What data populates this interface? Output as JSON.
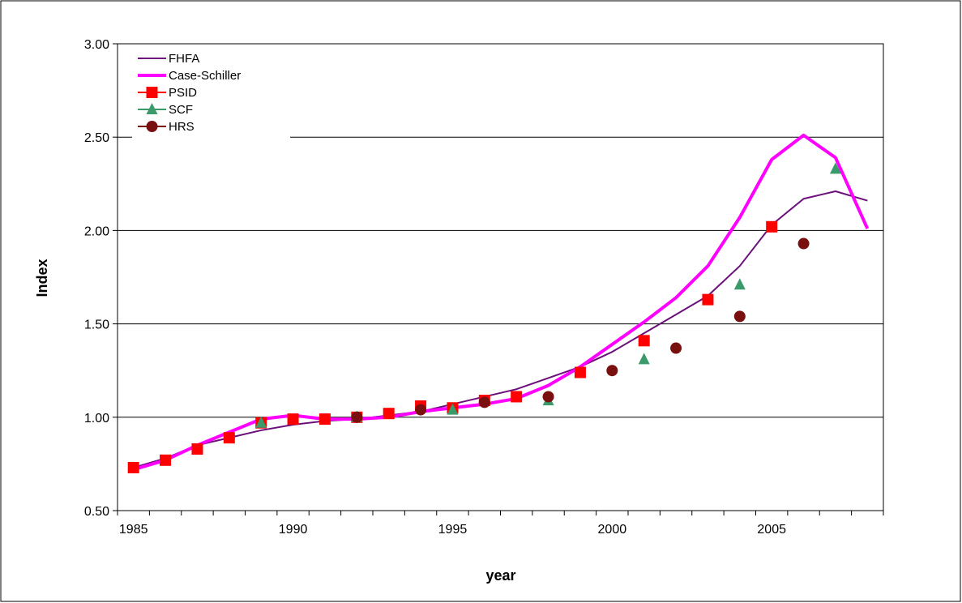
{
  "chart_data": {
    "type": "line",
    "title": "",
    "xlabel": "year",
    "ylabel": "Index",
    "xlim": [
      1985,
      2008
    ],
    "ylim": [
      0.5,
      3.0
    ],
    "x_ticks": [
      "1985",
      "1990",
      "1995",
      "2000",
      "2005"
    ],
    "y_ticks": [
      "0.50",
      "1.00",
      "1.50",
      "2.00",
      "2.50",
      "3.00"
    ],
    "grid": "horizontal",
    "legend_position": "top-left",
    "colors": {
      "FHFA": "#6B0F7A",
      "Case-Schiller": "#FF00FF",
      "PSID": "#FF0000",
      "SCF": "#3A9A6A",
      "HRS": "#7A0F0F"
    },
    "series": [
      {
        "name": "FHFA",
        "style": "line",
        "x": [
          1985,
          1986,
          1987,
          1988,
          1989,
          1990,
          1991,
          1992,
          1993,
          1994,
          1995,
          1996,
          1997,
          1998,
          1999,
          2000,
          2001,
          2002,
          2003,
          2004,
          2005,
          2006,
          2007,
          2008
        ],
        "values": [
          0.73,
          0.78,
          0.85,
          0.89,
          0.93,
          0.96,
          0.98,
          0.99,
          1.01,
          1.03,
          1.07,
          1.11,
          1.15,
          1.21,
          1.27,
          1.35,
          1.45,
          1.55,
          1.65,
          1.81,
          2.03,
          2.17,
          2.21,
          2.16
        ]
      },
      {
        "name": "Case-Schiller",
        "style": "line",
        "x": [
          1985,
          1986,
          1987,
          1988,
          1989,
          1990,
          1991,
          1992,
          1993,
          1994,
          1995,
          1996,
          1997,
          1998,
          1999,
          2000,
          2001,
          2002,
          2003,
          2004,
          2005,
          2006,
          2007,
          2008
        ],
        "values": [
          0.72,
          0.77,
          0.85,
          0.92,
          0.99,
          1.01,
          0.99,
          0.99,
          1.0,
          1.03,
          1.05,
          1.07,
          1.1,
          1.17,
          1.27,
          1.39,
          1.51,
          1.64,
          1.81,
          2.07,
          2.38,
          2.51,
          2.39,
          2.01
        ]
      },
      {
        "name": "PSID",
        "style": "square",
        "x": [
          1985,
          1986,
          1987,
          1988,
          1989,
          1990,
          1991,
          1992,
          1993,
          1994,
          1995,
          1996,
          1997,
          1999,
          2001,
          2003,
          2005
        ],
        "values": [
          0.73,
          0.77,
          0.83,
          0.89,
          0.97,
          0.99,
          0.99,
          1.0,
          1.02,
          1.06,
          1.05,
          1.09,
          1.11,
          1.24,
          1.41,
          1.63,
          2.02
        ]
      },
      {
        "name": "SCF",
        "style": "triangle",
        "x": [
          1989,
          1992,
          1995,
          1998,
          2001,
          2004,
          2007
        ],
        "values": [
          0.97,
          1.0,
          1.04,
          1.09,
          1.31,
          1.71,
          2.33
        ]
      },
      {
        "name": "HRS",
        "style": "circle",
        "x": [
          1992,
          1994,
          1996,
          1998,
          2000,
          2002,
          2004,
          2006
        ],
        "values": [
          1.0,
          1.04,
          1.08,
          1.11,
          1.25,
          1.37,
          1.54,
          1.93
        ]
      }
    ]
  }
}
